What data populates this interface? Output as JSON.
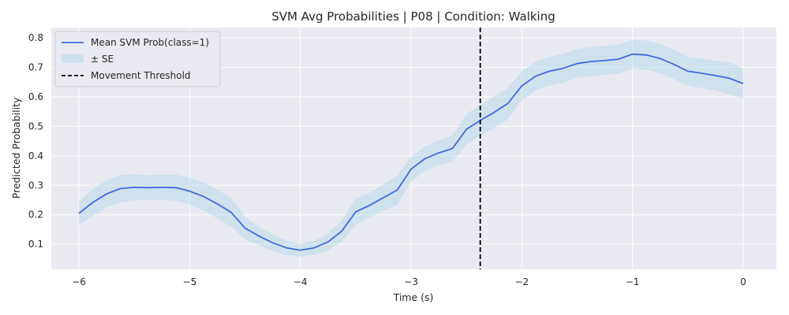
{
  "chart_data": {
    "type": "line",
    "title": "SVM Avg Probabilities | P08 | Condition: Walking",
    "xlabel": "Time (s)",
    "ylabel": "Predicted Probability",
    "xlim": [
      -6.25,
      0.3
    ],
    "ylim": [
      0.015,
      0.835
    ],
    "xticks": [
      -6,
      -5,
      -4,
      -3,
      -2,
      -1,
      0
    ],
    "xtick_labels": [
      "−6",
      "−5",
      "−4",
      "−3",
      "−2",
      "−1",
      "0"
    ],
    "yticks": [
      0.1,
      0.2,
      0.3,
      0.4,
      0.5,
      0.6,
      0.7,
      0.8
    ],
    "ytick_labels": [
      "0.1",
      "0.2",
      "0.3",
      "0.4",
      "0.5",
      "0.6",
      "0.7",
      "0.8"
    ],
    "grid": true,
    "legend_position": "top-left",
    "colors": {
      "line": "#4169e1",
      "band": "#add8e6",
      "threshold": "#000000",
      "plot_background": "#eaeaf2",
      "grid": "#ffffff"
    },
    "series": [
      {
        "name": "Mean SVM Prob(class=1)",
        "x": [
          -6.0,
          -5.875,
          -5.75,
          -5.625,
          -5.5,
          -5.375,
          -5.25,
          -5.125,
          -5.0,
          -4.875,
          -4.75,
          -4.625,
          -4.5,
          -4.375,
          -4.25,
          -4.125,
          -4.0,
          -3.875,
          -3.75,
          -3.625,
          -3.5,
          -3.375,
          -3.25,
          -3.125,
          -3.0,
          -2.875,
          -2.75,
          -2.625,
          -2.5,
          -2.375,
          -2.25,
          -2.125,
          -2.0,
          -1.875,
          -1.75,
          -1.625,
          -1.5,
          -1.375,
          -1.25,
          -1.125,
          -1.0,
          -0.875,
          -0.75,
          -0.625,
          -0.5,
          -0.375,
          -0.25,
          -0.125,
          0.0
        ],
        "y": [
          0.205,
          0.242,
          0.271,
          0.289,
          0.293,
          0.292,
          0.293,
          0.292,
          0.28,
          0.262,
          0.237,
          0.208,
          0.155,
          0.128,
          0.105,
          0.088,
          0.08,
          0.088,
          0.108,
          0.145,
          0.21,
          0.232,
          0.258,
          0.284,
          0.355,
          0.39,
          0.41,
          0.425,
          0.49,
          0.52,
          0.547,
          0.578,
          0.637,
          0.67,
          0.687,
          0.697,
          0.713,
          0.72,
          0.723,
          0.728,
          0.745,
          0.742,
          0.73,
          0.71,
          0.687,
          0.68,
          0.672,
          0.663,
          0.645
        ],
        "se_lower": [
          0.165,
          0.196,
          0.225,
          0.243,
          0.249,
          0.25,
          0.25,
          0.248,
          0.235,
          0.214,
          0.188,
          0.16,
          0.117,
          0.097,
          0.077,
          0.063,
          0.058,
          0.064,
          0.079,
          0.109,
          0.166,
          0.19,
          0.213,
          0.234,
          0.313,
          0.348,
          0.368,
          0.38,
          0.438,
          0.468,
          0.494,
          0.525,
          0.588,
          0.622,
          0.638,
          0.648,
          0.664,
          0.671,
          0.674,
          0.679,
          0.696,
          0.693,
          0.681,
          0.66,
          0.638,
          0.63,
          0.622,
          0.608,
          0.595
        ],
        "se_upper": [
          0.245,
          0.288,
          0.317,
          0.335,
          0.337,
          0.334,
          0.336,
          0.336,
          0.325,
          0.31,
          0.286,
          0.256,
          0.193,
          0.159,
          0.133,
          0.113,
          0.102,
          0.112,
          0.137,
          0.181,
          0.254,
          0.274,
          0.303,
          0.334,
          0.397,
          0.432,
          0.452,
          0.47,
          0.542,
          0.572,
          0.6,
          0.631,
          0.686,
          0.718,
          0.736,
          0.746,
          0.762,
          0.769,
          0.772,
          0.777,
          0.794,
          0.791,
          0.779,
          0.76,
          0.736,
          0.73,
          0.722,
          0.718,
          0.695
        ]
      }
    ],
    "threshold": {
      "name": "Movement Threshold",
      "x": -2.375
    },
    "legend": {
      "mean_label": "Mean SVM Prob(class=1)",
      "band_label": "± SE",
      "threshold_label": "Movement Threshold"
    }
  }
}
